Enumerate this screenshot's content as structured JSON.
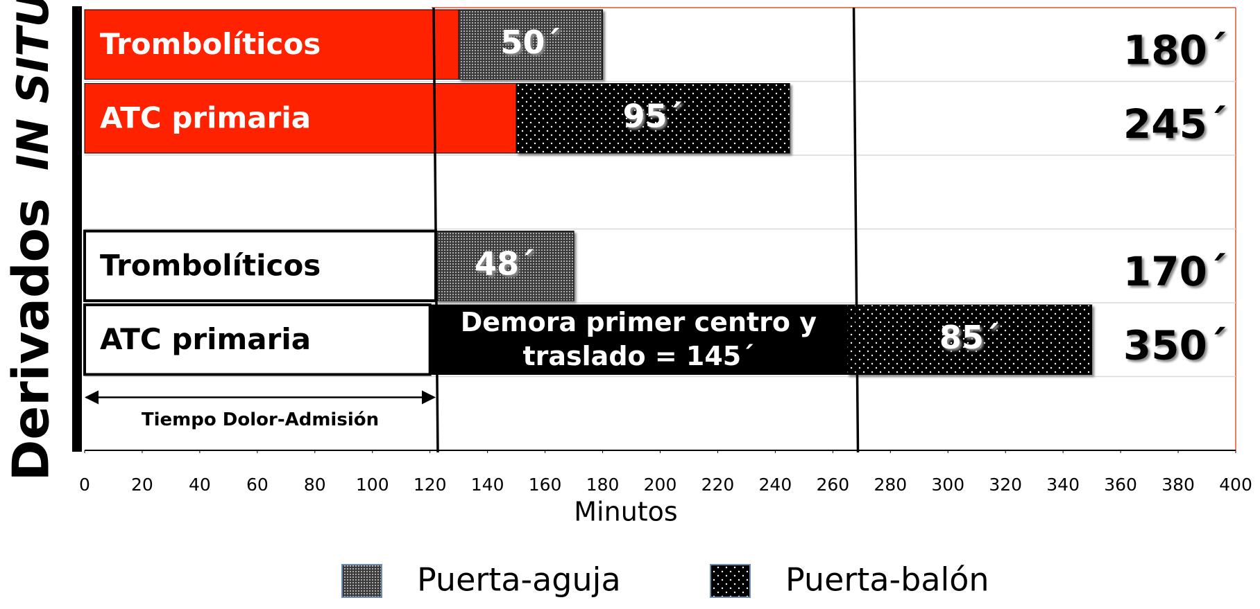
{
  "chart_data": {
    "type": "stacked-barh",
    "groups": [
      "IN SITU",
      "Derivados"
    ],
    "categories": [
      "Trombolíticos",
      "ATC primaria",
      "Trombolíticos",
      "ATC primaria"
    ],
    "series": [
      {
        "color": "#ff2200",
        "values": [
          130,
          150,
          null,
          null
        ]
      },
      {
        "color": "#ffffff",
        "values": [
          null,
          null,
          122,
          120
        ]
      },
      {
        "color": "#000000",
        "values": [
          null,
          null,
          null,
          145
        ],
        "value_labels": [
          null,
          null,
          null,
          "Demora primer centro y traslado = 145´"
        ]
      },
      {
        "name": "Puerta-aguja",
        "color": "#444444",
        "pattern": "fine-dots",
        "values": [
          50,
          null,
          48,
          null
        ],
        "value_labels": [
          "50´",
          null,
          "48´",
          null
        ]
      },
      {
        "name": "Puerta-balón",
        "color": "#000000",
        "pattern": "sparse-dots",
        "values": [
          null,
          95,
          null,
          85
        ],
        "value_labels": [
          null,
          "95´",
          null,
          "85´"
        ]
      }
    ],
    "totals": [
      180,
      245,
      170,
      350
    ],
    "total_labels": [
      "180´",
      "245´",
      "170´",
      "350´"
    ],
    "reference_lines": [
      122,
      268
    ],
    "annotation": {
      "text": "Tiempo Dolor-Admisión",
      "from": 0,
      "to": 122
    },
    "xlabel": "Minutos",
    "xlim": [
      0,
      400
    ],
    "xticks": [
      0,
      20,
      40,
      60,
      80,
      100,
      120,
      140,
      160,
      180,
      200,
      220,
      240,
      260,
      280,
      300,
      320,
      340,
      360,
      380,
      400
    ],
    "grid": true,
    "legend": "bottom"
  }
}
